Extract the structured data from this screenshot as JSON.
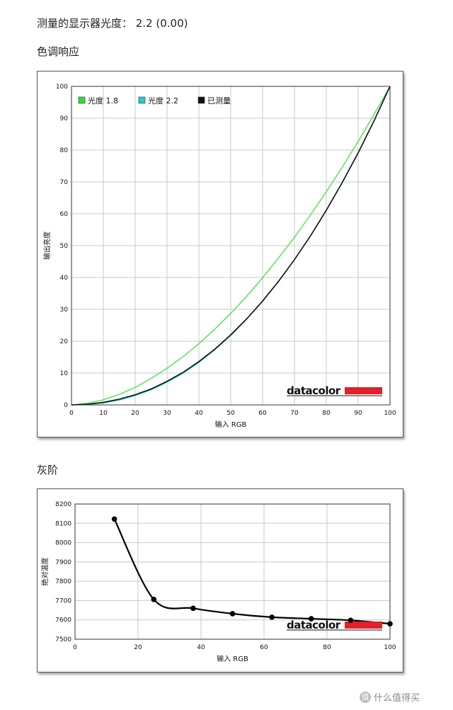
{
  "header": {
    "measured_gamma": "测量的显示器光度： 2.2 (0.00)",
    "tone_response_title": "色调响应",
    "grayscale_title": "灰阶"
  },
  "logo": {
    "text": "datacolor",
    "accent_color": "#e0202a"
  },
  "watermark": {
    "icon": "值",
    "text": "什么值得买"
  },
  "chart_data": [
    {
      "type": "line",
      "title": "色调响应",
      "xlabel": "输入 RGB",
      "ylabel": "输出亮度",
      "xlim": [
        0,
        100
      ],
      "ylim": [
        0,
        100
      ],
      "xticks": [
        0,
        10,
        20,
        30,
        40,
        50,
        60,
        70,
        80,
        90,
        100
      ],
      "yticks": [
        0,
        10,
        20,
        30,
        40,
        50,
        60,
        70,
        80,
        90,
        100
      ],
      "grid": true,
      "legend_position": "top-left",
      "x": [
        0,
        5,
        10,
        15,
        20,
        25,
        30,
        35,
        40,
        45,
        50,
        55,
        60,
        65,
        70,
        75,
        80,
        85,
        90,
        95,
        100
      ],
      "series": [
        {
          "name": "光度 1.8",
          "color": "#33dd33",
          "values": [
            0,
            0.5,
            1.6,
            3.3,
            5.5,
            8.3,
            11.5,
            15.1,
            19.2,
            23.8,
            28.7,
            34.1,
            39.9,
            46.1,
            52.6,
            59.6,
            66.9,
            74.6,
            82.7,
            91.2,
            100
          ]
        },
        {
          "name": "光度 2.2",
          "color": "#22cccc",
          "values": [
            0,
            0.1,
            0.6,
            1.5,
            2.9,
            4.7,
            7.1,
            9.9,
            13.3,
            17.3,
            21.8,
            26.9,
            32.5,
            38.7,
            45.6,
            53.1,
            61.2,
            69.9,
            79.3,
            89.3,
            100
          ]
        },
        {
          "name": "已测量",
          "color": "#111111",
          "values": [
            0,
            0.2,
            0.8,
            1.8,
            3.2,
            5.0,
            7.4,
            10.2,
            13.6,
            17.5,
            22.0,
            27.0,
            32.6,
            38.8,
            45.6,
            53.0,
            61.1,
            69.8,
            79.1,
            89.2,
            100
          ]
        }
      ]
    },
    {
      "type": "line",
      "title": "灰阶",
      "xlabel": "输入 RGB",
      "ylabel": "绝对温度",
      "xlim": [
        0,
        100
      ],
      "ylim": [
        7500,
        8200
      ],
      "xticks": [
        0,
        20,
        40,
        60,
        80,
        100
      ],
      "yticks": [
        7500,
        7600,
        7700,
        7800,
        7900,
        8000,
        8100,
        8200
      ],
      "grid": true,
      "series": [
        {
          "name": "",
          "color": "#000000",
          "x": [
            12.5,
            25,
            37.5,
            50,
            62.5,
            75,
            87.5,
            100
          ],
          "values": [
            8122,
            7706,
            7660,
            7632,
            7614,
            7606,
            7598,
            7580
          ]
        }
      ]
    }
  ]
}
